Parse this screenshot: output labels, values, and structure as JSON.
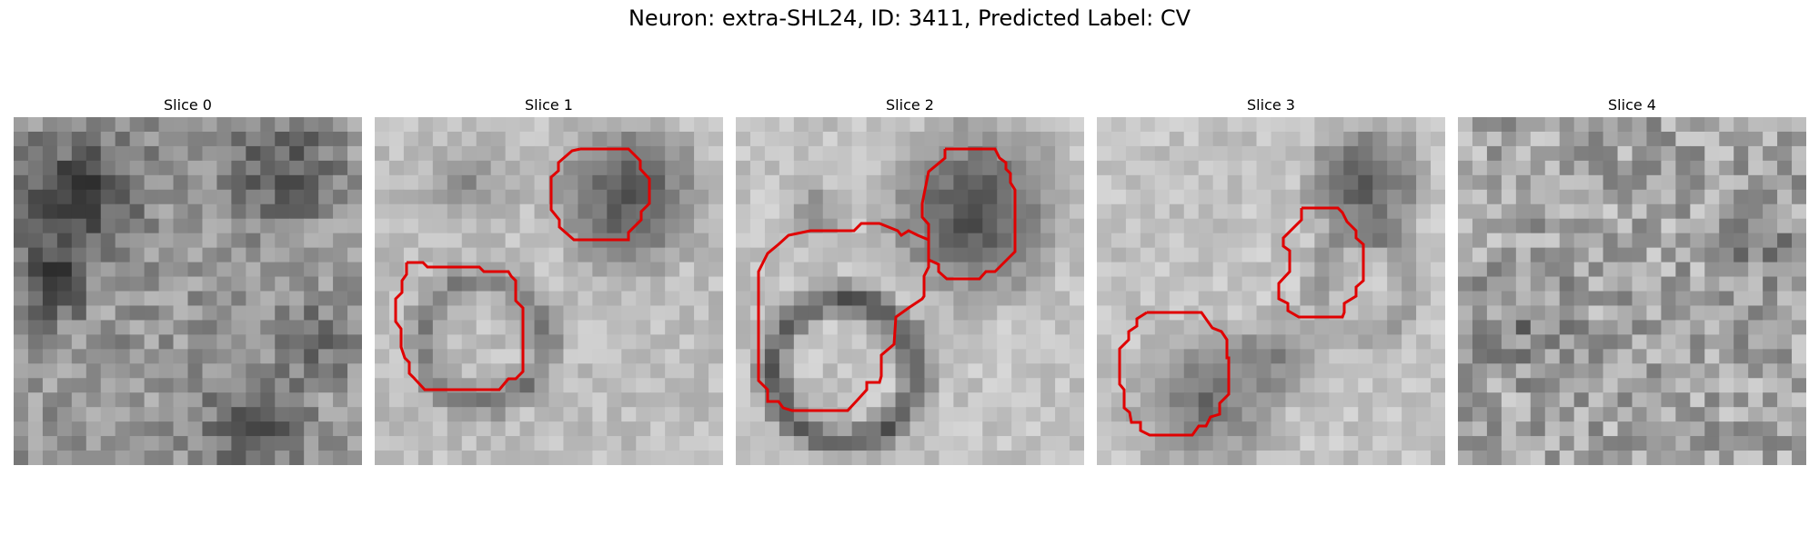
{
  "figure": {
    "title": "Neuron: extra-SHL24, ID: 3411, Predicted Label: CV"
  },
  "panels": [
    {
      "title": "Slice 0",
      "image": "noisy-grayscale-microscopy-slice",
      "outlines": 0
    },
    {
      "title": "Slice 1",
      "image": "noisy-grayscale-microscopy-slice",
      "outlines": 2
    },
    {
      "title": "Slice 2",
      "image": "noisy-grayscale-microscopy-slice",
      "outlines": 2
    },
    {
      "title": "Slice 3",
      "image": "noisy-grayscale-microscopy-slice",
      "outlines": 2
    },
    {
      "title": "Slice 4",
      "image": "noisy-grayscale-microscopy-slice",
      "outlines": 0
    }
  ],
  "colors": {
    "background": "#ffffff",
    "outline": "#e00000",
    "text": "#000000"
  }
}
